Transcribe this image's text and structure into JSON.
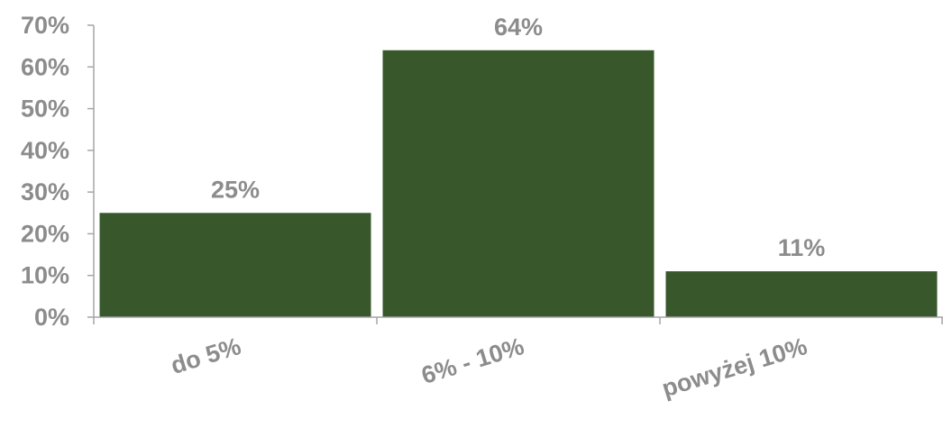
{
  "chart_data": {
    "type": "bar",
    "categories": [
      "do 5%",
      "6% - 10%",
      "powyżej 10%"
    ],
    "values": [
      25,
      64,
      11
    ],
    "value_labels": [
      "25%",
      "64%",
      "11%"
    ],
    "ylim": [
      0,
      70
    ],
    "y_ticks": [
      0,
      10,
      20,
      30,
      40,
      50,
      60,
      70
    ],
    "y_tick_labels": [
      "0%",
      "10%",
      "20%",
      "30%",
      "40%",
      "50%",
      "60%",
      "70%"
    ],
    "title": "",
    "xlabel": "",
    "ylabel": "",
    "grid": false,
    "legend": "none"
  },
  "colors": {
    "bar": "#38582b",
    "text": "#8c8c8c",
    "axis": "#a6a6a6"
  }
}
